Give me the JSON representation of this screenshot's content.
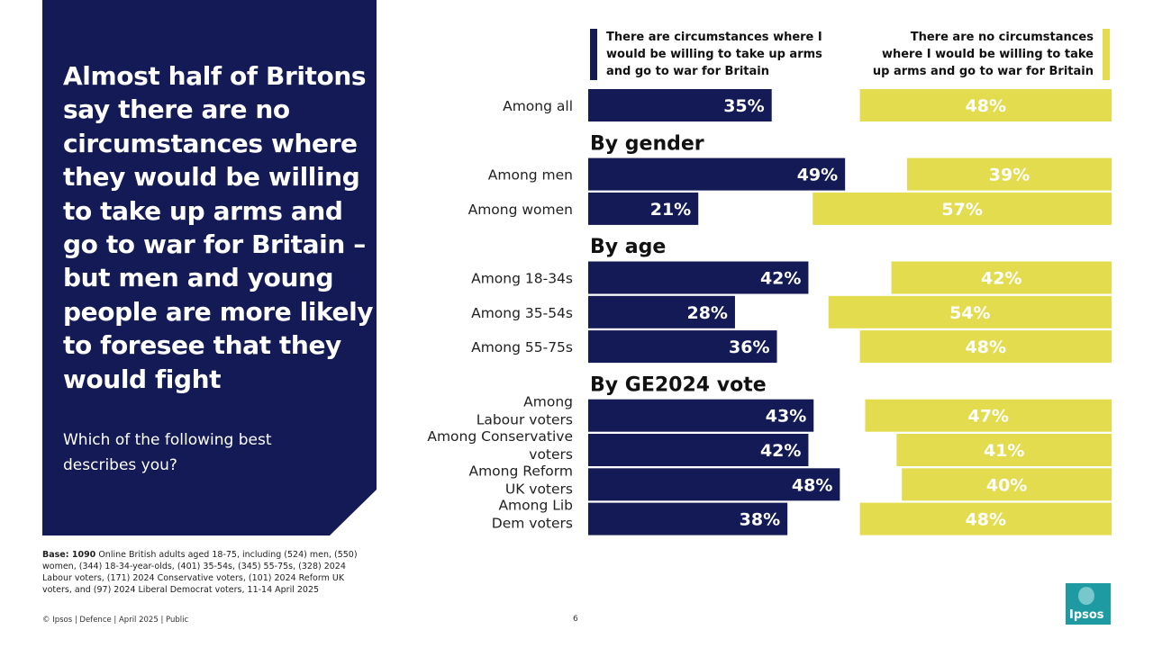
{
  "headline": "Almost half of Britons say there are no circumstances where they would be willing to take up arms and go to war for Britain – but men and young people are more likely to foresee that they would fight",
  "question": "Which of the following best describes you?",
  "base": {
    "label": "Base: 1090",
    "text": " Online British adults aged 18-75, including (524) men, (550) women, (344) 18-34-year-olds, (401) 35-54s, (345) 55-75s, (328) 2024 Labour voters, (171) 2024 Conservative voters, (101) 2024 Reform UK voters, and (97) 2024 Liberal Democrat voters, 11-14 April 2025"
  },
  "footer": "© Ipsos | Defence | April 2025 | Public",
  "page_number": "6",
  "logo_text": "Ipsos",
  "colors": {
    "navy": "#131a55",
    "yellow": "#e3dc4f",
    "teal": "#1e9aa3"
  },
  "chart_data": {
    "type": "bar",
    "title": "",
    "series": [
      {
        "name": "There are circumstances where I would  be willing to take up arms and go to war  for Britain",
        "color": "#131a55"
      },
      {
        "name": "There are no circumstances where I would be willing to take up arms and go to war for Britain",
        "color": "#e3dc4f"
      }
    ],
    "groups": [
      {
        "heading": "",
        "rows": [
          {
            "label": "Among all",
            "values": [
              35,
              48
            ]
          }
        ]
      },
      {
        "heading": "By gender",
        "rows": [
          {
            "label": "Among men",
            "values": [
              49,
              39
            ]
          },
          {
            "label": "Among women",
            "values": [
              21,
              57
            ]
          }
        ]
      },
      {
        "heading": "By age",
        "rows": [
          {
            "label": "Among 18-34s",
            "values": [
              42,
              42
            ]
          },
          {
            "label": "Among 35-54s",
            "values": [
              28,
              54
            ]
          },
          {
            "label": "Among 55-75s",
            "values": [
              36,
              48
            ]
          }
        ]
      },
      {
        "heading": "By GE2024 vote",
        "rows": [
          {
            "label": "Among\nLabour voters",
            "values": [
              43,
              47
            ]
          },
          {
            "label": "Among Conservative\nvoters",
            "values": [
              42,
              41
            ]
          },
          {
            "label": "Among Reform\nUK voters",
            "values": [
              48,
              40
            ]
          },
          {
            "label": "Among Lib\nDem voters",
            "values": [
              38,
              48
            ]
          }
        ]
      }
    ],
    "value_suffix": "%",
    "xlim": [
      0,
      100
    ]
  }
}
